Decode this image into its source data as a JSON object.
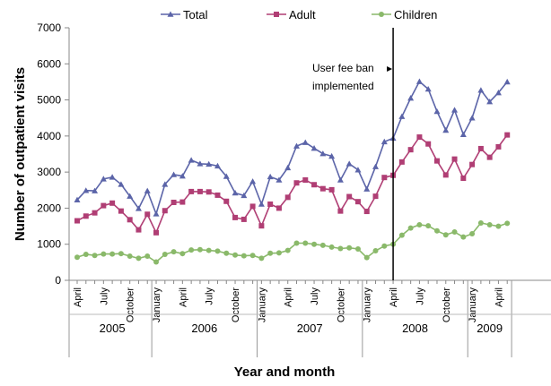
{
  "chart_data": {
    "type": "line",
    "ylabel": "Number of outpatient visits",
    "xlabel": "Year and month",
    "ylim": [
      0,
      7000
    ],
    "yticks": [
      0,
      1000,
      2000,
      3000,
      4000,
      5000,
      6000,
      7000
    ],
    "grid": false,
    "legend_position": "top",
    "x": [
      "2005-04",
      "2005-05",
      "2005-06",
      "2005-07",
      "2005-08",
      "2005-09",
      "2005-10",
      "2005-11",
      "2005-12",
      "2006-01",
      "2006-02",
      "2006-03",
      "2006-04",
      "2006-05",
      "2006-06",
      "2006-07",
      "2006-08",
      "2006-09",
      "2006-10",
      "2006-11",
      "2006-12",
      "2007-01",
      "2007-02",
      "2007-03",
      "2007-04",
      "2007-05",
      "2007-06",
      "2007-07",
      "2007-08",
      "2007-09",
      "2007-10",
      "2007-11",
      "2007-12",
      "2008-01",
      "2008-02",
      "2008-03",
      "2008-04",
      "2008-05",
      "2008-06",
      "2008-07",
      "2008-08",
      "2008-09",
      "2008-10",
      "2008-11",
      "2008-12",
      "2009-01",
      "2009-02",
      "2009-03",
      "2009-04",
      "2009-05"
    ],
    "month_labels": [
      {
        "label": "April",
        "at": "2005-04"
      },
      {
        "label": "July",
        "at": "2005-07"
      },
      {
        "label": "October",
        "at": "2005-10"
      },
      {
        "label": "January",
        "at": "2006-01"
      },
      {
        "label": "April",
        "at": "2006-04"
      },
      {
        "label": "July",
        "at": "2006-07"
      },
      {
        "label": "October",
        "at": "2006-10"
      },
      {
        "label": "January",
        "at": "2007-01"
      },
      {
        "label": "April",
        "at": "2007-04"
      },
      {
        "label": "July",
        "at": "2007-07"
      },
      {
        "label": "October",
        "at": "2007-10"
      },
      {
        "label": "January",
        "at": "2008-01"
      },
      {
        "label": "April",
        "at": "2008-04"
      },
      {
        "label": "July",
        "at": "2008-07"
      },
      {
        "label": "October",
        "at": "2008-10"
      },
      {
        "label": "January",
        "at": "2009-01"
      },
      {
        "label": "April",
        "at": "2009-04"
      }
    ],
    "year_groups": [
      {
        "label": "2005",
        "from": "2005-04",
        "to": "2005-12"
      },
      {
        "label": "2006",
        "from": "2006-01",
        "to": "2006-12"
      },
      {
        "label": "2007",
        "from": "2007-01",
        "to": "2007-12"
      },
      {
        "label": "2008",
        "from": "2008-01",
        "to": "2008-12"
      },
      {
        "label": "2009",
        "from": "2009-01",
        "to": "2009-05"
      }
    ],
    "series": [
      {
        "name": "Total",
        "color": "#5b64a8",
        "marker": "triangle",
        "values": [
          2230,
          2490,
          2480,
          2810,
          2860,
          2660,
          2330,
          1990,
          2480,
          1840,
          2660,
          2930,
          2890,
          3330,
          3230,
          3220,
          3170,
          2880,
          2420,
          2350,
          2740,
          2110,
          2870,
          2780,
          3120,
          3720,
          3820,
          3660,
          3510,
          3440,
          2780,
          3230,
          3060,
          2530,
          3150,
          3840,
          3940,
          4540,
          5050,
          5510,
          5300,
          4680,
          4160,
          4720,
          4040,
          4500,
          5270,
          4950,
          5200,
          5500
        ]
      },
      {
        "name": "Adult",
        "color": "#b03e74",
        "marker": "square",
        "values": [
          1650,
          1780,
          1870,
          2070,
          2140,
          1920,
          1680,
          1400,
          1830,
          1320,
          1930,
          2160,
          2170,
          2460,
          2460,
          2450,
          2360,
          2190,
          1740,
          1690,
          2050,
          1510,
          2110,
          2000,
          2300,
          2700,
          2780,
          2650,
          2540,
          2510,
          1920,
          2320,
          2180,
          1910,
          2330,
          2850,
          2910,
          3280,
          3620,
          3970,
          3780,
          3310,
          2920,
          3360,
          2830,
          3210,
          3650,
          3410,
          3700,
          4030
        ]
      },
      {
        "name": "Children",
        "color": "#8ab96a",
        "marker": "circle",
        "values": [
          640,
          720,
          690,
          730,
          730,
          740,
          670,
          610,
          670,
          510,
          720,
          790,
          740,
          840,
          850,
          830,
          810,
          750,
          700,
          680,
          690,
          610,
          750,
          760,
          830,
          1030,
          1030,
          1000,
          970,
          920,
          880,
          900,
          870,
          630,
          820,
          950,
          1000,
          1250,
          1450,
          1540,
          1510,
          1370,
          1260,
          1340,
          1200,
          1290,
          1590,
          1540,
          1500,
          1580
        ]
      }
    ],
    "annotation": {
      "text_line1": "User fee ban",
      "text_line2": "implemented",
      "at": "2008-04"
    }
  }
}
